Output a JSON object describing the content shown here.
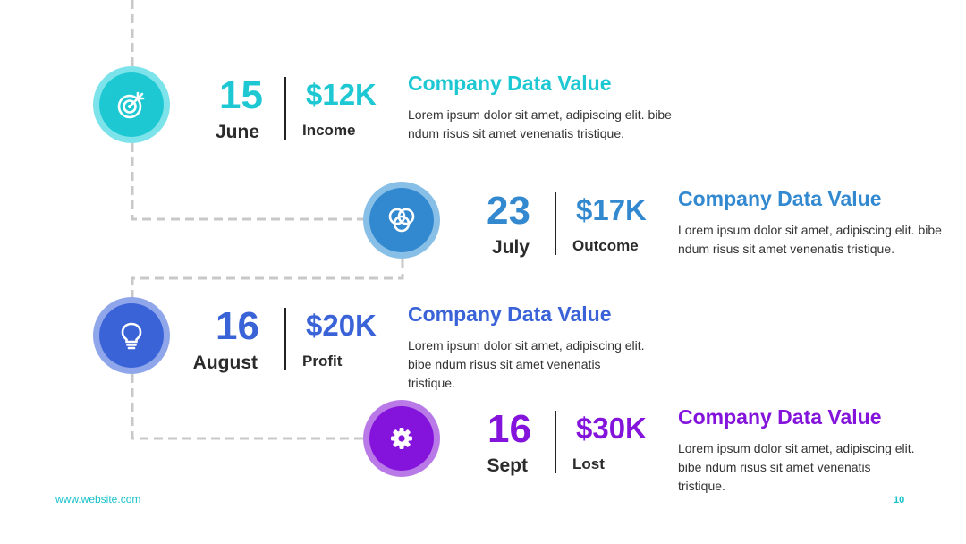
{
  "timeline": {
    "items": [
      {
        "day": "15",
        "month": "June",
        "amount": "$12K",
        "amount_label": "Income",
        "title": "Company Data Value",
        "description": "Lorem ipsum dolor sit amet, adipiscing elit. bibe ndum risus sit amet venenatis tristique.",
        "color": "#1ec8d3",
        "ring_color": "#7de3ea",
        "icon": "target-icon"
      },
      {
        "day": "23",
        "month": "July",
        "amount": "$17K",
        "amount_label": "Outcome",
        "title": "Company Data Value",
        "description": "Lorem ipsum dolor sit amet, adipiscing elit. bibe ndum risus sit amet venenatis tristique.",
        "color": "#3389d0",
        "ring_color": "#88bfe6",
        "icon": "venn-diagram-icon"
      },
      {
        "day": "16",
        "month": "August",
        "amount": "$20K",
        "amount_label": "Profit",
        "title": "Company Data Value",
        "description": "Lorem ipsum dolor sit amet, adipiscing elit. bibe ndum risus sit amet venenatis tristique.",
        "color": "#3b63d8",
        "ring_color": "#8fa6ea",
        "icon": "lightbulb-icon"
      },
      {
        "day": "16",
        "month": "Sept",
        "amount": "$30K",
        "amount_label": "Lost",
        "title": "Company Data Value",
        "description": "Lorem ipsum dolor sit amet, adipiscing elit. bibe ndum risus sit amet venenatis tristique.",
        "color": "#8414dc",
        "ring_color": "#b97ae8",
        "icon": "gear-icon"
      }
    ]
  },
  "footer": {
    "website": "www.website.com",
    "page_number": "10"
  }
}
